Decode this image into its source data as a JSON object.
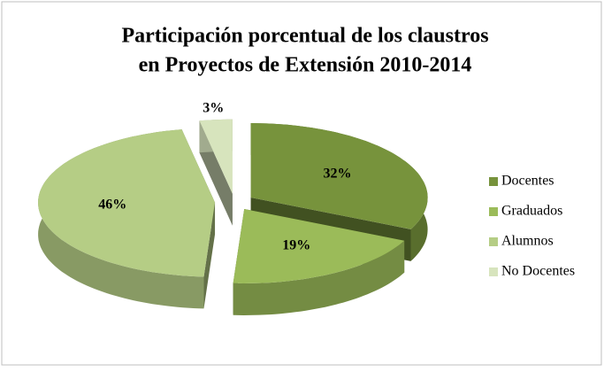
{
  "chart_data": {
    "type": "pie3d",
    "title": [
      "Participación porcentual de los claustros",
      "en Proyectos de Extensión 2010-2014"
    ],
    "categories": [
      "Docentes",
      "Graduados",
      "Alumnos",
      "No Docentes"
    ],
    "values": [
      32,
      19,
      46,
      3
    ],
    "value_labels": [
      "32%",
      "19%",
      "46%",
      "3%"
    ],
    "colors": [
      "#77933c",
      "#9bbb59",
      "#b5cd85",
      "#d7e4bd"
    ],
    "legend": "right"
  }
}
